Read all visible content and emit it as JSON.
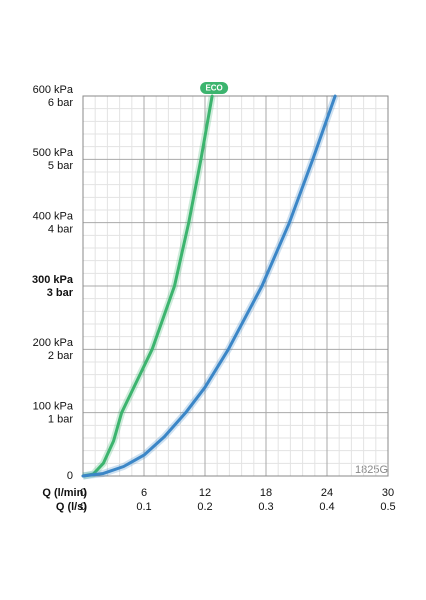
{
  "chart_data": {
    "type": "line",
    "xlabel": "Q (l/min)",
    "x2label": "Q (l/s)",
    "xlim": [
      0,
      30
    ],
    "xticks": [
      0,
      6,
      12,
      18,
      24,
      30
    ],
    "x2lim": [
      0,
      0.5
    ],
    "x2ticks": [
      0,
      0.1,
      0.2,
      0.3,
      0.4,
      0.5
    ],
    "xminorticks": [
      1.2,
      2.4,
      3.6,
      4.8,
      7.2,
      8.4,
      9.6,
      10.8,
      13.2,
      14.4,
      15.6,
      16.8,
      19.2,
      20.4,
      21.6,
      22.8,
      25.2,
      26.4,
      27.6,
      28.8
    ],
    "ylim": [
      0,
      600
    ],
    "yticks": [
      0,
      {
        "value": 100,
        "label": "100 kPa"
      },
      {
        "value": 200,
        "label": "200 kPa"
      },
      {
        "value": 300,
        "label": "300 kPa"
      },
      {
        "value": 400,
        "label": "400 kPa"
      },
      {
        "value": 500,
        "label": "500 kPa"
      },
      {
        "value": 600,
        "label": "600 kPa"
      }
    ],
    "y2lim": [
      0,
      6
    ],
    "y2ticks": [
      {
        "value": 1,
        "label": "1 bar"
      },
      {
        "value": 2,
        "label": "2 bar"
      },
      {
        "value": 3,
        "label": "3 bar"
      },
      {
        "value": 4,
        "label": "4 bar"
      },
      {
        "value": 5,
        "label": "5 bar"
      },
      {
        "value": 6,
        "label": "6 bar"
      }
    ],
    "yminorticks": [
      20,
      40,
      60,
      80,
      120,
      140,
      160,
      180,
      220,
      240,
      260,
      280,
      320,
      340,
      360,
      380,
      420,
      440,
      460,
      480,
      520,
      540,
      560,
      580
    ],
    "highlight_ytick": 300,
    "grid": true,
    "code": "1825G",
    "series": [
      {
        "name": "ECO",
        "color": "#3cb46e",
        "x": [
          0,
          1,
          2,
          3,
          3.8,
          5.3,
          6.8,
          9.0,
          10.4,
          11.6,
          12.7
        ],
        "values": [
          0,
          3,
          20,
          55,
          100,
          150,
          200,
          300,
          400,
          500,
          600
        ]
      },
      {
        "color": "#3b86c7",
        "x": [
          0,
          2,
          4,
          6,
          8,
          10.1,
          12,
          14.3,
          17.6,
          20.3,
          22.6,
          24.8
        ],
        "values": [
          0,
          4,
          15,
          33,
          62,
          100,
          140,
          200,
          300,
          400,
          500,
          600
        ]
      }
    ]
  }
}
